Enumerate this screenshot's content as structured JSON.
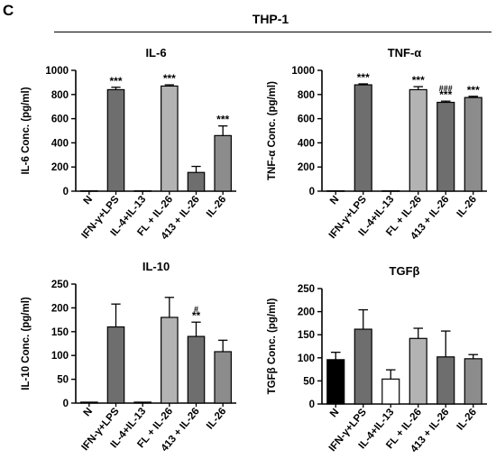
{
  "panel_letter": "C",
  "group_title": "THP-1",
  "colors": {
    "dark_gray": "#6e6e6e",
    "light_gray": "#b3b3b3",
    "black": "#000000"
  },
  "chart_data": [
    {
      "type": "bar",
      "title": "IL-6",
      "ylabel": "IL-6 Conc. (pg/ml)",
      "ylim": [
        0,
        1000
      ],
      "yticks": [
        0,
        200,
        400,
        600,
        800,
        1000
      ],
      "categories": [
        "N",
        "IFN-γ+LPS",
        "IL-4+IL-13",
        "FL + IL-26",
        "413 + IL-26",
        "IL-26"
      ],
      "values": [
        3,
        840,
        3,
        870,
        155,
        460
      ],
      "errors": [
        0,
        20,
        0,
        10,
        50,
        80
      ],
      "colors": [
        "#6e6e6e",
        "#6e6e6e",
        "#6e6e6e",
        "#b3b3b3",
        "#6e6e6e",
        "#8c8c8c"
      ],
      "annotations": [
        {
          "bar": 1,
          "lines": [
            "***"
          ]
        },
        {
          "bar": 3,
          "lines": [
            "***"
          ]
        },
        {
          "bar": 5,
          "lines": [
            "***"
          ]
        }
      ]
    },
    {
      "type": "bar",
      "title": "TNF-α",
      "ylabel": "TNF-α Conc. (pg/ml)",
      "ylim": [
        0,
        1000
      ],
      "yticks": [
        0,
        200,
        400,
        600,
        800,
        1000
      ],
      "categories": [
        "N",
        "IFN-γ+LPS",
        "IL-4+IL-13",
        "FL + IL-26",
        "413 + IL-26",
        "IL-26"
      ],
      "values": [
        3,
        880,
        3,
        840,
        735,
        775
      ],
      "errors": [
        0,
        8,
        0,
        25,
        10,
        10
      ],
      "colors": [
        "#6e6e6e",
        "#6e6e6e",
        "#6e6e6e",
        "#b3b3b3",
        "#6e6e6e",
        "#8c8c8c"
      ],
      "annotations": [
        {
          "bar": 1,
          "lines": [
            "***"
          ]
        },
        {
          "bar": 3,
          "lines": [
            "***"
          ]
        },
        {
          "bar": 4,
          "lines": [
            "###",
            "***"
          ]
        },
        {
          "bar": 5,
          "lines": [
            "***"
          ]
        }
      ]
    },
    {
      "type": "bar",
      "title": "IL-10",
      "ylabel": "IL-10 Conc. (pg/ml)",
      "ylim": [
        0,
        250
      ],
      "yticks": [
        0,
        50,
        100,
        150,
        200,
        250
      ],
      "categories": [
        "N",
        "IFN-γ+LPS",
        "IL-4+IL-13",
        "FL + IL-26",
        "413 + IL-26",
        "IL-26"
      ],
      "values": [
        2,
        160,
        2,
        180,
        140,
        108
      ],
      "errors": [
        0,
        48,
        0,
        42,
        30,
        24
      ],
      "colors": [
        "#6e6e6e",
        "#6e6e6e",
        "#6e6e6e",
        "#b3b3b3",
        "#6e6e6e",
        "#8c8c8c"
      ],
      "annotations": [
        {
          "bar": 4,
          "lines": [
            "#",
            "**"
          ]
        }
      ]
    },
    {
      "type": "bar",
      "title": "TGFβ",
      "ylabel": "TGFβ Conc. (pg/ml)",
      "ylim": [
        0,
        250
      ],
      "yticks": [
        0,
        50,
        100,
        150,
        200,
        250
      ],
      "categories": [
        "N",
        "IFN-γ+LPS",
        "IL-4+IL-13",
        "FL + IL-26",
        "413 + IL-26",
        "IL-26"
      ],
      "values": [
        96,
        162,
        54,
        142,
        102,
        98
      ],
      "errors": [
        16,
        42,
        20,
        22,
        56,
        9
      ],
      "colors": [
        "#000000",
        "#6e6e6e",
        "#ffffff",
        "#b3b3b3",
        "#6e6e6e",
        "#8c8c8c"
      ],
      "annotations": []
    }
  ]
}
